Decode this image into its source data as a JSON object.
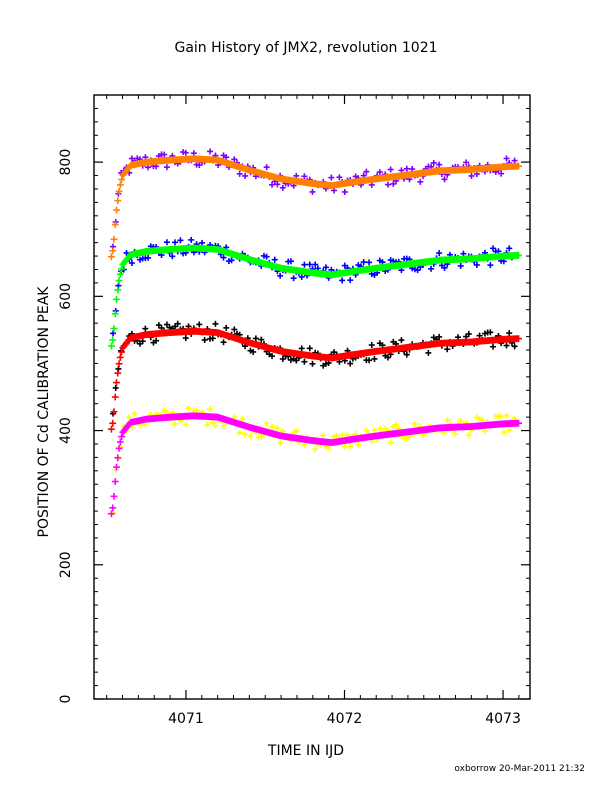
{
  "chart_data": {
    "type": "scatter",
    "title": "Gain History of JMX2, revolution 1021",
    "xlabel": "TIME IN IJD",
    "ylabel": "POSITION OF Cd CALIBRATION PEAK",
    "footer": "oxborrow 20-Mar-2011 21:32",
    "xlim": [
      4070.42,
      4073.17
    ],
    "ylim": [
      0,
      900
    ],
    "xticks": [
      4071,
      4072,
      4073
    ],
    "yticks": [
      0,
      200,
      400,
      600,
      800
    ],
    "xtick_labels": [
      "4071",
      "4072",
      "4073"
    ],
    "ytick_labels": [
      "0",
      "200",
      "400",
      "600",
      "800"
    ],
    "grid": false,
    "legend": "none",
    "trend_knots": {
      "x": [
        4070.53,
        4070.54,
        4070.55,
        4070.56,
        4070.58,
        4070.6,
        4070.65,
        4070.75,
        4070.9,
        4071.05,
        4071.2,
        4071.4,
        4071.6,
        4071.8,
        4071.92,
        4072.05,
        4072.2,
        4072.4,
        4072.6,
        4072.8,
        4073.0,
        4073.1
      ],
      "offset": [
        -146,
        -135,
        -110,
        -80,
        -45,
        -25,
        -10,
        -5,
        -2,
        0,
        -2,
        -17,
        -30,
        -37,
        -40,
        -35,
        -30,
        -24,
        -18,
        -16,
        -12,
        -11
      ]
    },
    "series": [
      {
        "scatter_color": "#8000ff",
        "trend_color": "#ff8000",
        "base": 805
      },
      {
        "scatter_color": "#0000ff",
        "trend_color": "#00ff00",
        "base": 672
      },
      {
        "scatter_color": "#000000",
        "trend_color": "#ff0000",
        "base": 548
      },
      {
        "scatter_color": "#ffff00",
        "trend_color": "#ff00ff",
        "base": 422
      }
    ]
  }
}
